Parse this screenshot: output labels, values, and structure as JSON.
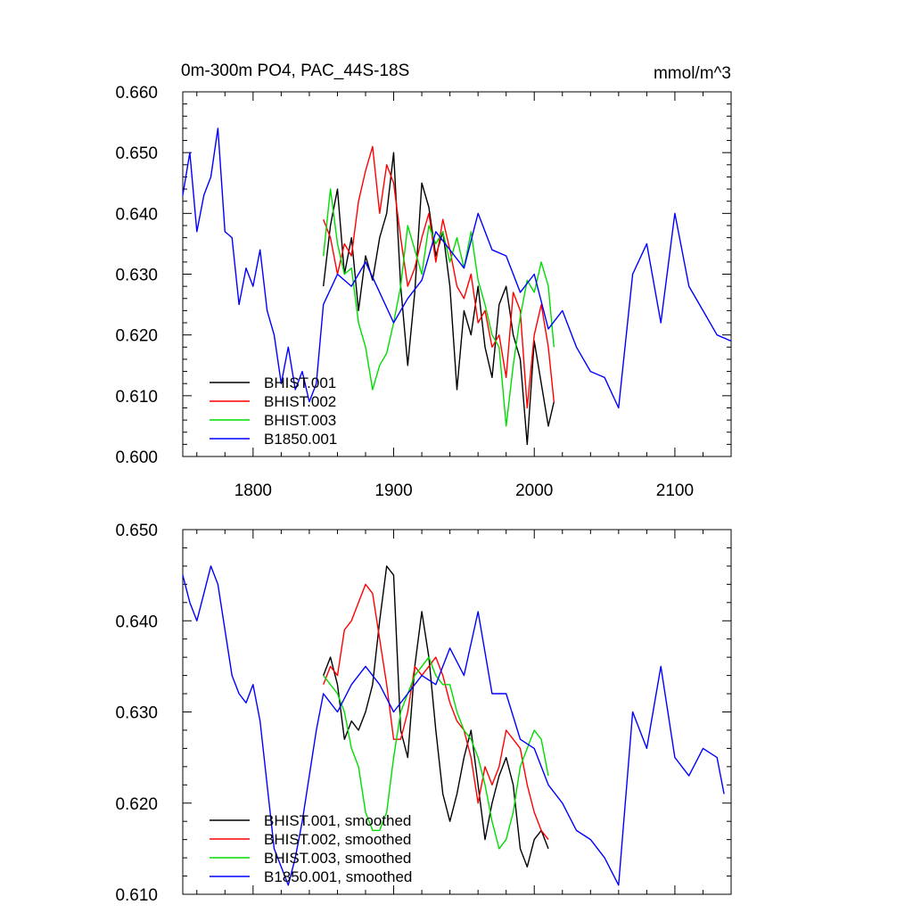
{
  "title_left": "0m-300m PO4, PAC_44S-18S",
  "title_right": "mmol/m^3",
  "colors": {
    "BHIST.001": "#000000",
    "BHIST.002": "#ff0000",
    "BHIST.003": "#00dd00",
    "B1850.001": "#0000ff"
  },
  "chart_data": [
    {
      "type": "line",
      "xlim": [
        1750,
        2140
      ],
      "ylim": [
        0.6,
        0.66
      ],
      "x_ticks": [
        "1800",
        "1900",
        "2000",
        "2100"
      ],
      "y_ticks": [
        "0.600",
        "0.610",
        "0.620",
        "0.630",
        "0.640",
        "0.650",
        "0.660"
      ],
      "legend": "bottom-left",
      "series": [
        {
          "name": "BHIST.001",
          "x": [
            1850,
            1855,
            1860,
            1865,
            1870,
            1875,
            1880,
            1885,
            1890,
            1895,
            1900,
            1905,
            1910,
            1915,
            1920,
            1925,
            1930,
            1935,
            1940,
            1945,
            1950,
            1955,
            1960,
            1965,
            1970,
            1975,
            1980,
            1985,
            1990,
            1995,
            2000,
            2005,
            2010,
            2014
          ],
          "y": [
            0.628,
            0.638,
            0.644,
            0.63,
            0.636,
            0.624,
            0.633,
            0.629,
            0.636,
            0.64,
            0.65,
            0.628,
            0.615,
            0.627,
            0.645,
            0.641,
            0.633,
            0.637,
            0.628,
            0.611,
            0.624,
            0.62,
            0.628,
            0.618,
            0.613,
            0.625,
            0.628,
            0.62,
            0.616,
            0.602,
            0.619,
            0.612,
            0.605,
            0.609
          ]
        },
        {
          "name": "BHIST.002",
          "x": [
            1850,
            1855,
            1860,
            1865,
            1870,
            1875,
            1880,
            1885,
            1890,
            1895,
            1900,
            1905,
            1910,
            1915,
            1920,
            1925,
            1930,
            1935,
            1940,
            1945,
            1950,
            1955,
            1960,
            1965,
            1970,
            1975,
            1980,
            1985,
            1990,
            1995,
            2000,
            2005,
            2010,
            2014
          ],
          "y": [
            0.639,
            0.636,
            0.63,
            0.635,
            0.633,
            0.642,
            0.647,
            0.651,
            0.64,
            0.648,
            0.645,
            0.636,
            0.628,
            0.631,
            0.636,
            0.64,
            0.632,
            0.639,
            0.634,
            0.628,
            0.626,
            0.63,
            0.622,
            0.624,
            0.618,
            0.62,
            0.613,
            0.627,
            0.624,
            0.608,
            0.62,
            0.625,
            0.618,
            0.609
          ]
        },
        {
          "name": "BHIST.003",
          "x": [
            1850,
            1855,
            1860,
            1865,
            1870,
            1875,
            1880,
            1885,
            1890,
            1895,
            1900,
            1905,
            1910,
            1915,
            1920,
            1925,
            1930,
            1935,
            1940,
            1945,
            1950,
            1955,
            1960,
            1965,
            1970,
            1975,
            1980,
            1985,
            1990,
            1995,
            2000,
            2005,
            2010,
            2014
          ],
          "y": [
            0.633,
            0.644,
            0.635,
            0.63,
            0.631,
            0.622,
            0.618,
            0.611,
            0.615,
            0.617,
            0.622,
            0.628,
            0.638,
            0.634,
            0.63,
            0.638,
            0.635,
            0.637,
            0.632,
            0.636,
            0.631,
            0.637,
            0.629,
            0.625,
            0.62,
            0.618,
            0.605,
            0.615,
            0.623,
            0.629,
            0.627,
            0.632,
            0.628,
            0.618
          ]
        },
        {
          "name": "B1850.001",
          "x": [
            1750,
            1755,
            1760,
            1765,
            1770,
            1775,
            1780,
            1785,
            1790,
            1795,
            1800,
            1805,
            1810,
            1815,
            1820,
            1825,
            1830,
            1835,
            1840,
            1845,
            1850,
            1860,
            1870,
            1880,
            1890,
            1900,
            1910,
            1920,
            1930,
            1940,
            1950,
            1960,
            1970,
            1980,
            1990,
            2000,
            2010,
            2020,
            2030,
            2040,
            2050,
            2060,
            2070,
            2080,
            2090,
            2100,
            2110,
            2120,
            2130,
            2140
          ],
          "y": [
            0.643,
            0.65,
            0.637,
            0.643,
            0.646,
            0.654,
            0.637,
            0.636,
            0.625,
            0.631,
            0.628,
            0.634,
            0.624,
            0.62,
            0.612,
            0.618,
            0.611,
            0.614,
            0.609,
            0.612,
            0.625,
            0.63,
            0.628,
            0.632,
            0.627,
            0.622,
            0.626,
            0.629,
            0.637,
            0.634,
            0.631,
            0.64,
            0.634,
            0.633,
            0.627,
            0.63,
            0.621,
            0.624,
            0.618,
            0.614,
            0.613,
            0.608,
            0.63,
            0.635,
            0.622,
            0.64,
            0.628,
            0.624,
            0.62,
            0.619
          ]
        }
      ]
    },
    {
      "type": "line",
      "xlim": [
        1750,
        2140
      ],
      "ylim": [
        0.61,
        0.65
      ],
      "y_ticks": [
        "0.610",
        "0.620",
        "0.630",
        "0.640",
        "0.650"
      ],
      "legend": "bottom-left",
      "series": [
        {
          "name": "BHIST.001, smoothed",
          "x": [
            1850,
            1855,
            1860,
            1865,
            1870,
            1875,
            1880,
            1885,
            1890,
            1895,
            1900,
            1905,
            1910,
            1915,
            1920,
            1925,
            1930,
            1935,
            1940,
            1945,
            1950,
            1955,
            1960,
            1965,
            1970,
            1975,
            1980,
            1985,
            1990,
            1995,
            2000,
            2005,
            2010
          ],
          "y": [
            0.634,
            0.636,
            0.633,
            0.627,
            0.629,
            0.628,
            0.63,
            0.633,
            0.64,
            0.646,
            0.645,
            0.628,
            0.625,
            0.635,
            0.641,
            0.636,
            0.628,
            0.621,
            0.618,
            0.621,
            0.625,
            0.628,
            0.622,
            0.616,
            0.62,
            0.623,
            0.625,
            0.622,
            0.615,
            0.613,
            0.616,
            0.617,
            0.615
          ]
        },
        {
          "name": "BHIST.002, smoothed",
          "x": [
            1850,
            1855,
            1860,
            1865,
            1870,
            1875,
            1880,
            1885,
            1890,
            1895,
            1900,
            1905,
            1910,
            1915,
            1920,
            1925,
            1930,
            1935,
            1940,
            1945,
            1950,
            1955,
            1960,
            1965,
            1970,
            1975,
            1980,
            1985,
            1990,
            1995,
            2000,
            2005,
            2010
          ],
          "y": [
            0.633,
            0.635,
            0.634,
            0.639,
            0.64,
            0.642,
            0.644,
            0.643,
            0.638,
            0.633,
            0.627,
            0.627,
            0.63,
            0.635,
            0.634,
            0.635,
            0.636,
            0.634,
            0.631,
            0.629,
            0.628,
            0.625,
            0.62,
            0.624,
            0.622,
            0.624,
            0.628,
            0.627,
            0.626,
            0.622,
            0.619,
            0.617,
            0.616
          ]
        },
        {
          "name": "BHIST.003, smoothed",
          "x": [
            1850,
            1855,
            1860,
            1865,
            1870,
            1875,
            1880,
            1885,
            1890,
            1895,
            1900,
            1905,
            1910,
            1915,
            1920,
            1925,
            1930,
            1935,
            1940,
            1945,
            1950,
            1955,
            1960,
            1965,
            1970,
            1975,
            1980,
            1985,
            1990,
            1995,
            2000,
            2005,
            2010
          ],
          "y": [
            0.634,
            0.633,
            0.632,
            0.63,
            0.626,
            0.624,
            0.619,
            0.617,
            0.617,
            0.619,
            0.625,
            0.63,
            0.632,
            0.634,
            0.635,
            0.636,
            0.634,
            0.633,
            0.633,
            0.63,
            0.628,
            0.627,
            0.625,
            0.622,
            0.618,
            0.615,
            0.616,
            0.619,
            0.624,
            0.626,
            0.628,
            0.627,
            0.623
          ]
        },
        {
          "name": "B1850.001, smoothed",
          "x": [
            1750,
            1755,
            1760,
            1765,
            1770,
            1775,
            1780,
            1785,
            1790,
            1795,
            1800,
            1805,
            1810,
            1815,
            1820,
            1825,
            1830,
            1835,
            1840,
            1845,
            1850,
            1855,
            1860,
            1870,
            1880,
            1890,
            1900,
            1910,
            1920,
            1930,
            1940,
            1950,
            1960,
            1970,
            1980,
            1990,
            2000,
            2010,
            2020,
            2030,
            2040,
            2050,
            2060,
            2070,
            2080,
            2090,
            2100,
            2110,
            2120,
            2130,
            2135
          ],
          "y": [
            0.645,
            0.642,
            0.64,
            0.643,
            0.646,
            0.644,
            0.639,
            0.634,
            0.632,
            0.631,
            0.633,
            0.629,
            0.622,
            0.615,
            0.613,
            0.611,
            0.614,
            0.618,
            0.623,
            0.628,
            0.632,
            0.631,
            0.63,
            0.633,
            0.635,
            0.633,
            0.63,
            0.632,
            0.634,
            0.633,
            0.637,
            0.634,
            0.641,
            0.632,
            0.632,
            0.627,
            0.626,
            0.622,
            0.62,
            0.617,
            0.616,
            0.614,
            0.611,
            0.63,
            0.626,
            0.635,
            0.625,
            0.623,
            0.626,
            0.625,
            0.621
          ]
        }
      ]
    }
  ]
}
